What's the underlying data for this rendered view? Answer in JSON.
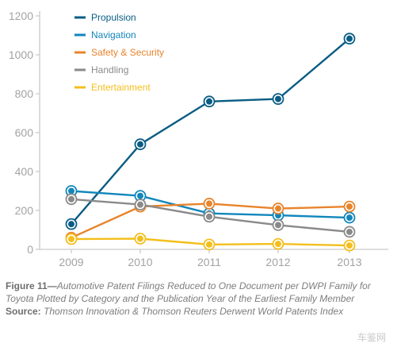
{
  "chart_data": {
    "type": "line",
    "x": [
      "2009",
      "2010",
      "2011",
      "2012",
      "2013"
    ],
    "yticks": [
      0,
      200,
      400,
      600,
      800,
      1000,
      1200
    ],
    "ylim": [
      0,
      1200
    ],
    "grid": false,
    "legend_position": "top-left",
    "series": [
      {
        "name": "Propulsion",
        "color": "#0a5d84",
        "values": [
          130,
          540,
          760,
          773,
          1083
        ]
      },
      {
        "name": "Navigation",
        "color": "#1186bb",
        "values": [
          300,
          275,
          185,
          175,
          163
        ]
      },
      {
        "name": "Safety & Security",
        "color": "#e8842b",
        "values": [
          60,
          220,
          235,
          210,
          220
        ]
      },
      {
        "name": "Handling",
        "color": "#8a8a8a",
        "values": [
          258,
          230,
          168,
          125,
          90
        ]
      },
      {
        "name": "Entertainment",
        "color": "#f3bf1d",
        "values": [
          53,
          55,
          25,
          28,
          20
        ]
      }
    ]
  },
  "caption": {
    "figure_label": "Figure 11—",
    "figure_text": "Automotive Patent Filings Reduced to One Document per DWPI Family for Toyota Plotted by Category and the Publication Year of the Earliest Family Member",
    "source_label": "Source:",
    "source_text": " Thomson Innovation & Thomson Reuters Derwent World Patents Index"
  },
  "watermark": "车鉴网"
}
